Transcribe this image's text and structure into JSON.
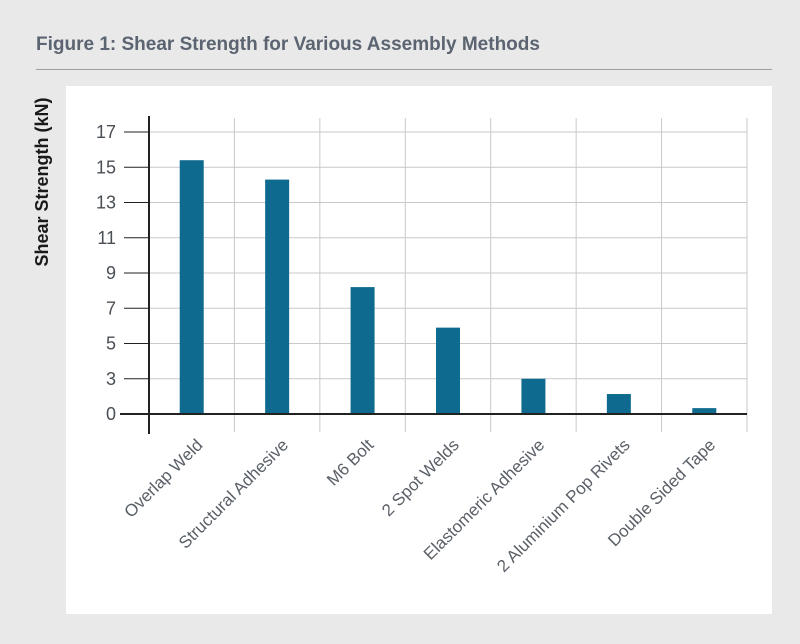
{
  "figure_title": "Figure 1: Shear Strength for Various Assembly Methods",
  "colors": {
    "bar": "#0e6a8e",
    "grid": "#c9c9c9",
    "axis": "#222222"
  },
  "chart_data": {
    "type": "bar",
    "title": "",
    "xlabel": "",
    "ylabel": "Shear Strength (kN)",
    "yticks": [
      0,
      3,
      5,
      7,
      9,
      11,
      13,
      15,
      17
    ],
    "grid": true,
    "categories": [
      "Overlap Weld",
      "Structural Adhesive",
      "M6 Bolt",
      "2 Spot Welds",
      "Elastomeric Adhesive",
      "2 Aluminium Pop Rivets",
      "Double Sided Tape"
    ],
    "values": [
      15.4,
      14.3,
      8.2,
      5.9,
      3.0,
      1.7,
      0.5
    ]
  }
}
